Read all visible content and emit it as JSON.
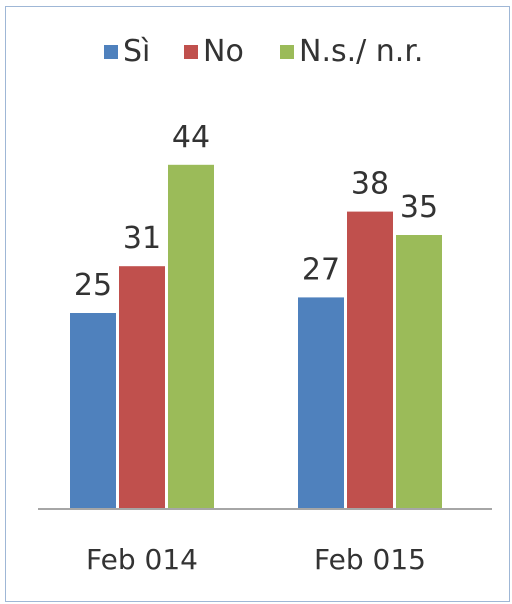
{
  "chart_data": {
    "type": "bar",
    "categories": [
      "Feb 014",
      "Feb 015"
    ],
    "series": [
      {
        "name": "Sì",
        "values": [
          25,
          27
        ],
        "color": "#4f81bd"
      },
      {
        "name": "No",
        "values": [
          31,
          38
        ],
        "color": "#c0504d"
      },
      {
        "name": "N.s./ n.r.",
        "values": [
          44,
          35
        ],
        "color": "#9bbb59"
      }
    ],
    "title": "",
    "xlabel": "",
    "ylabel": "",
    "ylim": [
      0,
      50
    ],
    "grid": false,
    "legend_position": "top"
  },
  "colors": {
    "axis": "#a6a6a6",
    "text": "#333333",
    "frame": "#9fb7d6"
  }
}
